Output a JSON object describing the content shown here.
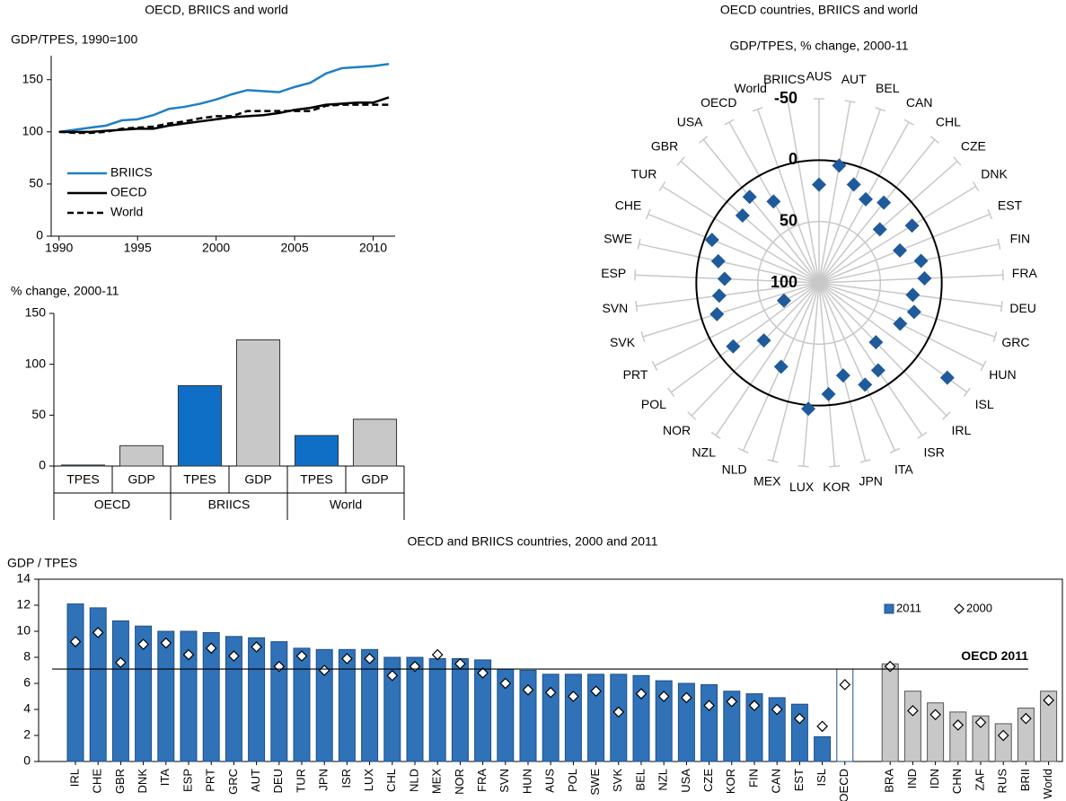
{
  "chart_data": [
    {
      "type": "line",
      "title": "OECD, BRIICS and world",
      "y_label": "GDP/TPES, 1990=100",
      "x": [
        1990,
        1991,
        1992,
        1993,
        1994,
        1995,
        1996,
        1997,
        1998,
        1999,
        2000,
        2001,
        2002,
        2003,
        2004,
        2005,
        2006,
        2007,
        2008,
        2009,
        2010,
        2011
      ],
      "series": [
        {
          "name": "BRIICS",
          "color": "#1f7fc4",
          "dash": false,
          "values": [
            100,
            102,
            104,
            106,
            111,
            112,
            116,
            122,
            124,
            127,
            131,
            136,
            140,
            139,
            138,
            143,
            147,
            156,
            161,
            162,
            163,
            165
          ]
        },
        {
          "name": "OECD",
          "color": "#000000",
          "dash": false,
          "values": [
            100,
            100,
            100,
            101,
            102,
            103,
            103,
            106,
            108,
            110,
            112,
            114,
            115,
            116,
            118,
            121,
            123,
            126,
            127,
            128,
            128,
            133
          ]
        },
        {
          "name": "World",
          "color": "#000000",
          "dash": true,
          "values": [
            100,
            99,
            99,
            100,
            103,
            104,
            105,
            108,
            110,
            113,
            115,
            115,
            120,
            120,
            120,
            120,
            120,
            125,
            126,
            126,
            126,
            126
          ]
        }
      ],
      "xlim": [
        1989.5,
        2011.4
      ],
      "xticks": [
        1990,
        1995,
        2000,
        2005,
        2010
      ],
      "ylim": [
        0,
        173
      ],
      "yticks": [
        0,
        50,
        100,
        150
      ],
      "grid": false,
      "legend": "lower left"
    },
    {
      "type": "bar",
      "y_label": "% change, 2000-11",
      "categories": [
        "TPES",
        "GDP",
        "TPES",
        "GDP",
        "TPES",
        "GDP"
      ],
      "groups": [
        "OECD",
        "BRIICS",
        "World"
      ],
      "values": [
        1,
        20,
        79,
        124,
        30,
        46
      ],
      "colors": [
        "#0f6fc6",
        "#c8c8c8",
        "#0f6fc6",
        "#c8c8c8",
        "#0f6fc6",
        "#c8c8c8"
      ],
      "ylim": [
        0,
        150
      ],
      "yticks": [
        0,
        50,
        100,
        150
      ],
      "grid": false
    },
    {
      "type": "radar",
      "title": "OECD countries, BRIICS and world",
      "subtitle": "GDP/TPES, % change, 2000-11",
      "categories": [
        "AUS",
        "AUT",
        "BEL",
        "CAN",
        "CHL",
        "CZE",
        "DNK",
        "EST",
        "FIN",
        "FRA",
        "DEU",
        "GRC",
        "HUN",
        "ISL",
        "IRL",
        "ISR",
        "ITA",
        "JPN",
        "KOR",
        "LUX",
        "MEX",
        "NLD",
        "NZL",
        "NOR",
        "POL",
        "PRT",
        "SVK",
        "SVN",
        "ESP",
        "SWE",
        "CHE",
        "TUR",
        "GBR",
        "USA",
        "OECD",
        "World",
        "BRIICS"
      ],
      "values": [
        20,
        3,
        15,
        22,
        16,
        34,
        11,
        29,
        15,
        14,
        23,
        19,
        26,
        -30,
        33,
        14,
        9,
        22,
        9,
        -3,
        null,
        25,
        null,
        35,
        13,
        68,
        13,
        18,
        23,
        16,
        6,
        null,
        17,
        10,
        24,
        null,
        null
      ],
      "color": "#1f5b9a",
      "rlim": [
        100,
        -50
      ],
      "rticks": [
        -50,
        0,
        50,
        100
      ]
    },
    {
      "type": "bar",
      "title": "OECD and BRIICS countries, 2000 and 2011",
      "y_label": "GDP / TPES",
      "categories": [
        "IRL",
        "CHE",
        "GBR",
        "DNK",
        "ITA",
        "ESP",
        "PRT",
        "GRC",
        "AUT",
        "DEU",
        "TUR",
        "JPN",
        "ISR",
        "LUX",
        "CHL",
        "NLD",
        "MEX",
        "NOR",
        "FRA",
        "SVN",
        "HUN",
        "AUS",
        "POL",
        "SWE",
        "SVK",
        "BEL",
        "NZL",
        "USA",
        "CZE",
        "KOR",
        "FIN",
        "CAN",
        "EST",
        "ISL",
        "OECD",
        "BRA",
        "IND",
        "IDN",
        "CHN",
        "ZAF",
        "RUS",
        "BRII",
        "World"
      ],
      "series": [
        {
          "name": "2011",
          "marker": "bar",
          "color": "#2f72b8",
          "colors": [
            "#2f72b8",
            "#2f72b8",
            "#2f72b8",
            "#2f72b8",
            "#2f72b8",
            "#2f72b8",
            "#2f72b8",
            "#2f72b8",
            "#2f72b8",
            "#2f72b8",
            "#2f72b8",
            "#2f72b8",
            "#2f72b8",
            "#2f72b8",
            "#2f72b8",
            "#2f72b8",
            "#2f72b8",
            "#2f72b8",
            "#2f72b8",
            "#2f72b8",
            "#2f72b8",
            "#2f72b8",
            "#2f72b8",
            "#2f72b8",
            "#2f72b8",
            "#2f72b8",
            "#2f72b8",
            "#2f72b8",
            "#2f72b8",
            "#2f72b8",
            "#2f72b8",
            "#2f72b8",
            "#2f72b8",
            "#2f72b8",
            "#ffffff",
            "#c8c8c8",
            "#c8c8c8",
            "#c8c8c8",
            "#c8c8c8",
            "#c8c8c8",
            "#c8c8c8",
            "#c8c8c8",
            "#c8c8c8"
          ],
          "values": [
            12.1,
            11.8,
            10.8,
            10.4,
            10.0,
            10.0,
            9.9,
            9.6,
            9.5,
            9.2,
            8.7,
            8.6,
            8.6,
            8.6,
            8.0,
            8.0,
            7.9,
            7.9,
            7.8,
            7.1,
            7.0,
            6.7,
            6.7,
            6.7,
            6.7,
            6.6,
            6.2,
            6.0,
            5.9,
            5.4,
            5.2,
            4.9,
            4.4,
            1.9,
            7.1,
            7.5,
            5.4,
            4.5,
            3.8,
            3.5,
            2.9,
            4.1,
            5.4
          ]
        },
        {
          "name": "2000",
          "marker": "diamond",
          "color": "#ffffff",
          "values": [
            9.2,
            9.9,
            7.6,
            9.0,
            9.1,
            8.2,
            8.7,
            8.1,
            8.8,
            7.3,
            8.1,
            7.0,
            7.9,
            7.9,
            6.6,
            7.3,
            8.2,
            7.5,
            6.8,
            6.0,
            5.5,
            5.3,
            5.0,
            5.4,
            3.8,
            5.2,
            5.0,
            4.9,
            4.3,
            4.6,
            4.3,
            4.0,
            3.3,
            2.7,
            5.9,
            7.3,
            3.9,
            3.6,
            2.8,
            3.0,
            2.0,
            3.3,
            4.7
          ]
        }
      ],
      "reference_line": {
        "value": 7.1,
        "label": "OECD 2011"
      },
      "ylim": [
        0,
        14
      ],
      "yticks": [
        0,
        2,
        4,
        6,
        8,
        10,
        12,
        14
      ],
      "grid": false,
      "legend": "upper right"
    }
  ]
}
